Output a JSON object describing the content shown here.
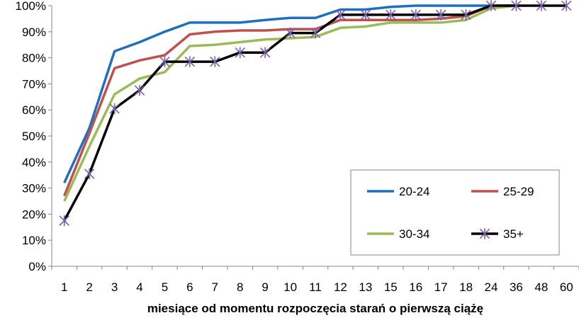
{
  "chart_data": {
    "type": "line",
    "categories": [
      "1",
      "2",
      "3",
      "4",
      "5",
      "6",
      "7",
      "8",
      "9",
      "10",
      "11",
      "12",
      "13",
      "15",
      "16",
      "17",
      "18",
      "24",
      "36",
      "48",
      "60"
    ],
    "xlabel": "miesiące od momentu rozpoczęcia starań o pierwszą ciążę",
    "ylabel": "",
    "ylim": [
      0,
      100
    ],
    "yticks": [
      "0%",
      "10%",
      "20%",
      "30%",
      "40%",
      "50%",
      "60%",
      "70%",
      "80%",
      "90%",
      "100%"
    ],
    "y_unit": "%",
    "grid": false,
    "legend_position": "inside-bottom-right",
    "series": [
      {
        "name": "20-24",
        "color": "#1f6fbf",
        "marker": "none",
        "values": [
          32,
          53,
          82.5,
          86,
          90,
          93.5,
          93.5,
          93.5,
          94.5,
          95.3,
          95.3,
          98.5,
          98.5,
          99.5,
          100,
          100,
          100,
          100,
          100,
          null,
          null
        ]
      },
      {
        "name": "25-29",
        "color": "#c0504d",
        "marker": "none",
        "values": [
          27,
          51,
          76,
          79,
          81,
          89,
          90,
          90.5,
          90.5,
          91,
          91,
          94.5,
          94.5,
          94.5,
          94.5,
          95,
          96,
          100,
          100,
          null,
          null
        ]
      },
      {
        "name": "30-34",
        "color": "#9bbb59",
        "marker": "none",
        "values": [
          25,
          46,
          66,
          72,
          74.5,
          84.5,
          85,
          86,
          87,
          87.5,
          88,
          91.5,
          92,
          93.5,
          93.5,
          93.5,
          94.5,
          99,
          100,
          null,
          null
        ]
      },
      {
        "name": "35+",
        "color": "#000000",
        "marker": "asterisk",
        "marker_color": "#7b5fa8",
        "values": [
          17.5,
          35.5,
          60.5,
          67.5,
          78.5,
          78.5,
          78.5,
          82,
          82,
          89.5,
          89.5,
          96.5,
          96.5,
          96.5,
          96.5,
          96.5,
          96.5,
          100,
          100,
          100,
          100
        ]
      }
    ]
  }
}
